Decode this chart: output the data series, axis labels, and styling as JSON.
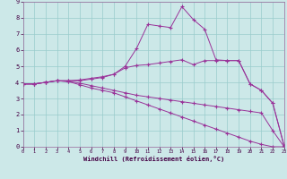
{
  "xlabel": "Windchill (Refroidissement éolien,°C)",
  "background_color": "#cce8e8",
  "grid_color": "#99cccc",
  "line_color": "#993399",
  "spine_color": "#996699",
  "xlim": [
    0,
    23
  ],
  "ylim": [
    0,
    9
  ],
  "xtick_vals": [
    0,
    1,
    2,
    3,
    4,
    5,
    6,
    7,
    8,
    9,
    10,
    11,
    12,
    13,
    14,
    15,
    16,
    17,
    18,
    19,
    20,
    21,
    22,
    23
  ],
  "ytick_vals": [
    0,
    1,
    2,
    3,
    4,
    5,
    6,
    7,
    8,
    9
  ],
  "line1_x": [
    0,
    1,
    2,
    3,
    4,
    5,
    6,
    7,
    8,
    9,
    10,
    11,
    12,
    13,
    14,
    15,
    16,
    17,
    18,
    19,
    20,
    21,
    22,
    23
  ],
  "line1_y": [
    3.9,
    3.9,
    4.0,
    4.1,
    4.05,
    3.95,
    3.8,
    3.65,
    3.5,
    3.35,
    3.2,
    3.1,
    3.0,
    2.9,
    2.8,
    2.7,
    2.6,
    2.5,
    2.4,
    2.3,
    2.2,
    2.1,
    1.0,
    0.0
  ],
  "line2_x": [
    0,
    1,
    2,
    3,
    4,
    5,
    6,
    7,
    8,
    9,
    10,
    11,
    12,
    13,
    14,
    15,
    16,
    17,
    18,
    19,
    20,
    21,
    22,
    23
  ],
  "line2_y": [
    3.9,
    3.9,
    4.0,
    4.1,
    4.1,
    4.1,
    4.2,
    4.3,
    4.5,
    5.0,
    6.1,
    7.6,
    7.5,
    7.4,
    8.7,
    7.9,
    7.3,
    5.4,
    5.35,
    5.35,
    3.9,
    3.5,
    2.7,
    0.05
  ],
  "line3_x": [
    0,
    1,
    2,
    3,
    4,
    5,
    6,
    7,
    8,
    9,
    10,
    11,
    12,
    13,
    14,
    15,
    16,
    17,
    18,
    19,
    20,
    21,
    22,
    23
  ],
  "line3_y": [
    3.9,
    3.9,
    4.0,
    4.1,
    4.1,
    4.15,
    4.25,
    4.35,
    4.5,
    4.9,
    5.05,
    5.1,
    5.2,
    5.3,
    5.4,
    5.1,
    5.35,
    5.35,
    5.35,
    5.35,
    3.9,
    3.5,
    2.7,
    0.05
  ],
  "line4_x": [
    0,
    1,
    2,
    3,
    4,
    5,
    6,
    7,
    8,
    9,
    10,
    11,
    12,
    13,
    14,
    15,
    16,
    17,
    18,
    19,
    20,
    21,
    22,
    23
  ],
  "line4_y": [
    3.9,
    3.9,
    4.0,
    4.1,
    4.05,
    3.85,
    3.65,
    3.5,
    3.35,
    3.1,
    2.85,
    2.6,
    2.35,
    2.1,
    1.85,
    1.6,
    1.35,
    1.1,
    0.85,
    0.6,
    0.35,
    0.15,
    0.0,
    0.0
  ]
}
